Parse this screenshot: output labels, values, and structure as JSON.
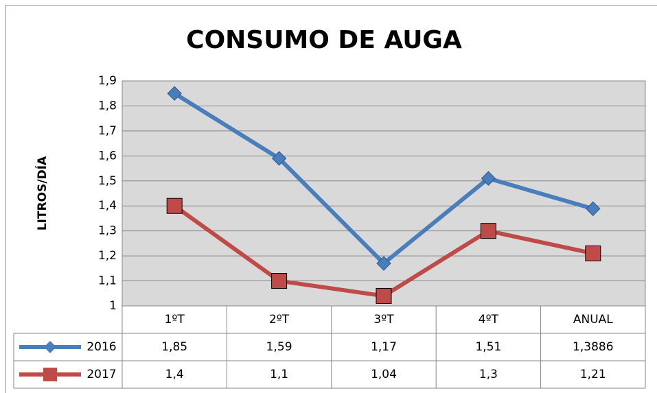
{
  "chart_data": {
    "type": "line",
    "title": "CONSUMO DE AUGA",
    "y_label": "LITROS/DÍA",
    "categories": [
      "1ºT",
      "2ºT",
      "3ºT",
      "4ºT",
      "ANUAL"
    ],
    "series": [
      {
        "name": "2016",
        "color": "#4a7ebb",
        "marker": "diamond",
        "values": [
          1.85,
          1.59,
          1.17,
          1.51,
          1.3886
        ],
        "value_labels": [
          "1,85",
          "1,59",
          "1,17",
          "1,51",
          "1,3886"
        ]
      },
      {
        "name": "2017",
        "color": "#be4b48",
        "marker": "square",
        "values": [
          1.4,
          1.1,
          1.04,
          1.3,
          1.21
        ],
        "value_labels": [
          "1,4",
          "1,1",
          "1,04",
          "1,3",
          "1,21"
        ]
      }
    ],
    "ylim": [
      1,
      1.9
    ],
    "yticks": [
      1,
      {
        "value": 1.1,
        "label": "1,1"
      },
      {
        "value": 1.2,
        "label": "1,2"
      },
      {
        "value": 1.3,
        "label": "1,3"
      },
      {
        "value": 1.4,
        "label": "1,4"
      },
      {
        "value": 1.5,
        "label": "1,5"
      },
      {
        "value": 1.6,
        "label": "1,6"
      },
      {
        "value": 1.7,
        "label": "1,7"
      },
      {
        "value": 1.8,
        "label": "1,8"
      },
      {
        "value": 1.9,
        "label": "1,9"
      }
    ],
    "grid": true,
    "data_table": true
  }
}
